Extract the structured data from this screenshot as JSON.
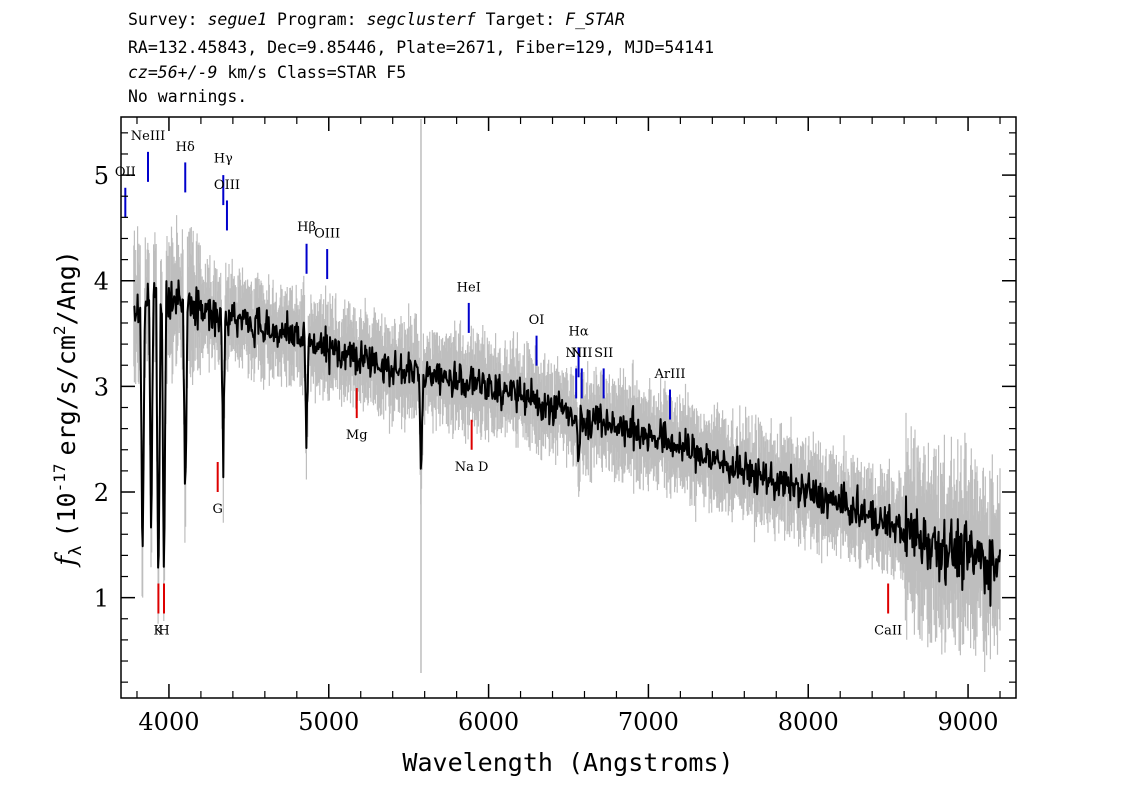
{
  "header": {
    "survey_label": "Survey:",
    "survey": "segue1",
    "program_label": "Program:",
    "program": "segclusterf",
    "target_label": "Target:",
    "target": "F_STAR",
    "coords": "RA=132.45843, Dec=9.85446, Plate=2671, Fiber=129, MJD=54141",
    "redshift": "cz=56+/-9",
    "redshift_units": "km/s",
    "class": "Class=STAR F5",
    "warnings": "No warnings."
  },
  "colors": {
    "spectrum": "#000000",
    "error_band": "#bebebe",
    "emission_line": "#0000cc",
    "absorption_line": "#dd0000"
  },
  "chart_data": {
    "type": "line",
    "xlabel": "Wavelength (Angstroms)",
    "ylabel_prefix": "f",
    "ylabel_sub": "λ",
    "ylabel_units": "(10",
    "ylabel_exp": "-17",
    "ylabel_rest": "erg/s/cm",
    "ylabel_exp2": "2",
    "ylabel_tail": "/Ang)",
    "xlim": [
      3700,
      9300
    ],
    "ylim": [
      0.05,
      5.55
    ],
    "xticks": [
      4000,
      5000,
      6000,
      7000,
      8000,
      9000
    ],
    "yticks": [
      1,
      2,
      3,
      4,
      5
    ],
    "continuum": {
      "x": [
        3800,
        3900,
        4000,
        4200,
        4400,
        4600,
        4800,
        5000,
        5200,
        5500,
        6000,
        6500,
        7000,
        7500,
        8000,
        8500,
        9000,
        9200
      ],
      "y": [
        3.7,
        3.85,
        3.8,
        3.75,
        3.65,
        3.55,
        3.45,
        3.35,
        3.25,
        3.15,
        3.0,
        2.75,
        2.55,
        2.25,
        2.0,
        1.7,
        1.4,
        1.3
      ]
    },
    "absorption_features": [
      {
        "x": 3835,
        "y": 1.25
      },
      {
        "x": 3889,
        "y": 1.55
      },
      {
        "x": 3934,
        "y": 1.0
      },
      {
        "x": 3969,
        "y": 1.05
      },
      {
        "x": 4102,
        "y": 1.9
      },
      {
        "x": 4340,
        "y": 2.3
      },
      {
        "x": 4861,
        "y": 2.5
      },
      {
        "x": 5577,
        "y": 2.2
      },
      {
        "x": 6563,
        "y": 2.2
      }
    ],
    "sky_line_x": 5577,
    "emission_lines": [
      {
        "label": "OII",
        "x": 3727,
        "y": 4.88,
        "label_y": 4.99
      },
      {
        "label": "NeIII",
        "x": 3869,
        "y": 5.22,
        "label_y": 5.33
      },
      {
        "label": "Hδ",
        "x": 4102,
        "y": 5.12,
        "label_y": 5.23
      },
      {
        "label": "Hγ",
        "x": 4340,
        "y": 5.0,
        "label_y": 5.12
      },
      {
        "label": "OIII",
        "x": 4363,
        "y": 4.76,
        "label_y": 4.87
      },
      {
        "label": "Hβ",
        "x": 4861,
        "y": 4.35,
        "label_y": 4.47
      },
      {
        "label": "OIII",
        "x": 4990,
        "y": 4.3,
        "label_y": 4.41
      },
      {
        "label": "HeI",
        "x": 5876,
        "y": 3.79,
        "label_y": 3.9
      },
      {
        "label": "OI",
        "x": 6300,
        "y": 3.48,
        "label_y": 3.59
      },
      {
        "label": "NII",
        "x": 6548,
        "y": 3.17,
        "label_y": 3.28
      },
      {
        "label": "Hα",
        "x": 6563,
        "y": 3.37,
        "label_y": 3.48
      },
      {
        "label": "NII",
        "x": 6583,
        "y": 3.17,
        "label_y": 3.28
      },
      {
        "label": "SII",
        "x": 6720,
        "y": 3.17,
        "label_y": 3.28
      },
      {
        "label": "ArIII",
        "x": 7135,
        "y": 2.97,
        "label_y": 3.08
      }
    ],
    "absorption_lines": [
      {
        "label": "K",
        "x": 3934,
        "y": 0.85,
        "label_y": 0.65
      },
      {
        "label": "H",
        "x": 3969,
        "y": 0.85,
        "label_y": 0.65
      },
      {
        "label": "G",
        "x": 4305,
        "y": 2.0,
        "label_y": 1.8
      },
      {
        "label": "Mg",
        "x": 5175,
        "y": 2.7,
        "label_y": 2.5
      },
      {
        "label": "Na D",
        "x": 5894,
        "y": 2.4,
        "label_y": 2.2
      },
      {
        "label": "CaII",
        "x": 8500,
        "y": 0.85,
        "label_y": 0.65
      }
    ]
  }
}
